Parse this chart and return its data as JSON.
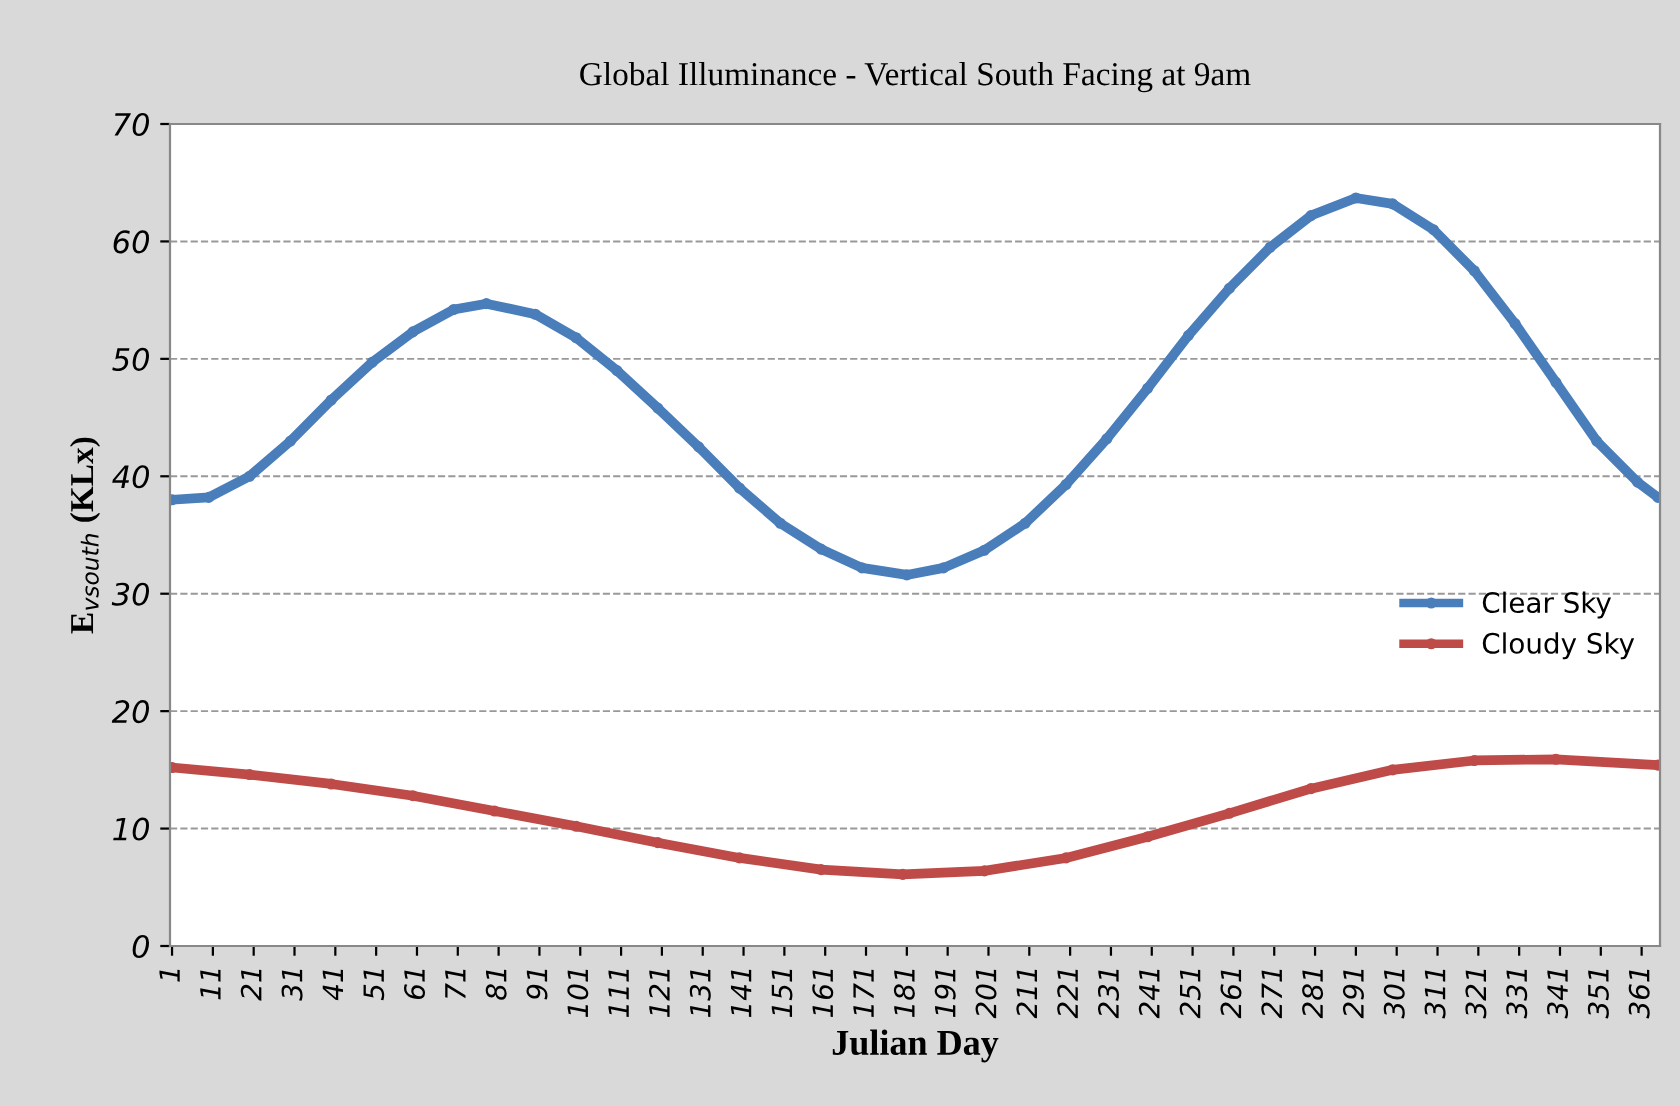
{
  "chart_data": {
    "type": "line",
    "title": "Global Illuminance - Vertical South Facing at 9am",
    "xlabel": "Julian Day",
    "ylabel": "E$_{vsouth}$ (KLx)",
    "xlim": [
      0.5,
      365.5
    ],
    "xticks": [
      1,
      11,
      21,
      31,
      41,
      51,
      61,
      71,
      81,
      91,
      101,
      111,
      121,
      131,
      141,
      151,
      161,
      171,
      181,
      191,
      201,
      211,
      221,
      231,
      241,
      251,
      261,
      271,
      281,
      291,
      301,
      311,
      321,
      331,
      341,
      351,
      361
    ],
    "ylim": [
      0,
      70
    ],
    "yticks": [
      0,
      10,
      20,
      30,
      40,
      50,
      60,
      70
    ],
    "grid": "y",
    "legend": "right",
    "marker": "circle",
    "line_style": "solid",
    "series": [
      {
        "name": "Clear Sky",
        "color": "#4a7ebb",
        "x": [
          1,
          10,
          20,
          30,
          40,
          50,
          60,
          70,
          78,
          90,
          100,
          110,
          120,
          130,
          140,
          150,
          160,
          170,
          181,
          190,
          200,
          210,
          220,
          230,
          240,
          250,
          260,
          270,
          280,
          291,
          300,
          310,
          320,
          330,
          340,
          350,
          360,
          365
        ],
        "values": [
          38.0,
          38.2,
          40,
          43,
          46.5,
          49.7,
          52.3,
          54.2,
          54.7,
          53.8,
          51.8,
          49,
          45.8,
          42.5,
          39,
          36,
          33.8,
          32.2,
          31.6,
          32.2,
          33.7,
          36,
          39.3,
          43.2,
          47.5,
          52,
          56,
          59.5,
          62.2,
          63.7,
          63.2,
          61,
          57.5,
          53,
          48,
          43,
          39.5,
          38.2
        ]
      },
      {
        "name": "Cloudy Sky",
        "color": "#be4b48",
        "x": [
          1,
          20,
          40,
          60,
          80,
          100,
          120,
          140,
          160,
          180,
          200,
          220,
          240,
          260,
          280,
          300,
          320,
          340,
          365
        ],
        "values": [
          15.2,
          14.6,
          13.8,
          12.8,
          11.5,
          10.2,
          8.8,
          7.5,
          6.5,
          6.1,
          6.4,
          7.5,
          9.3,
          11.3,
          13.4,
          15,
          15.8,
          15.9,
          15.4
        ]
      }
    ]
  }
}
